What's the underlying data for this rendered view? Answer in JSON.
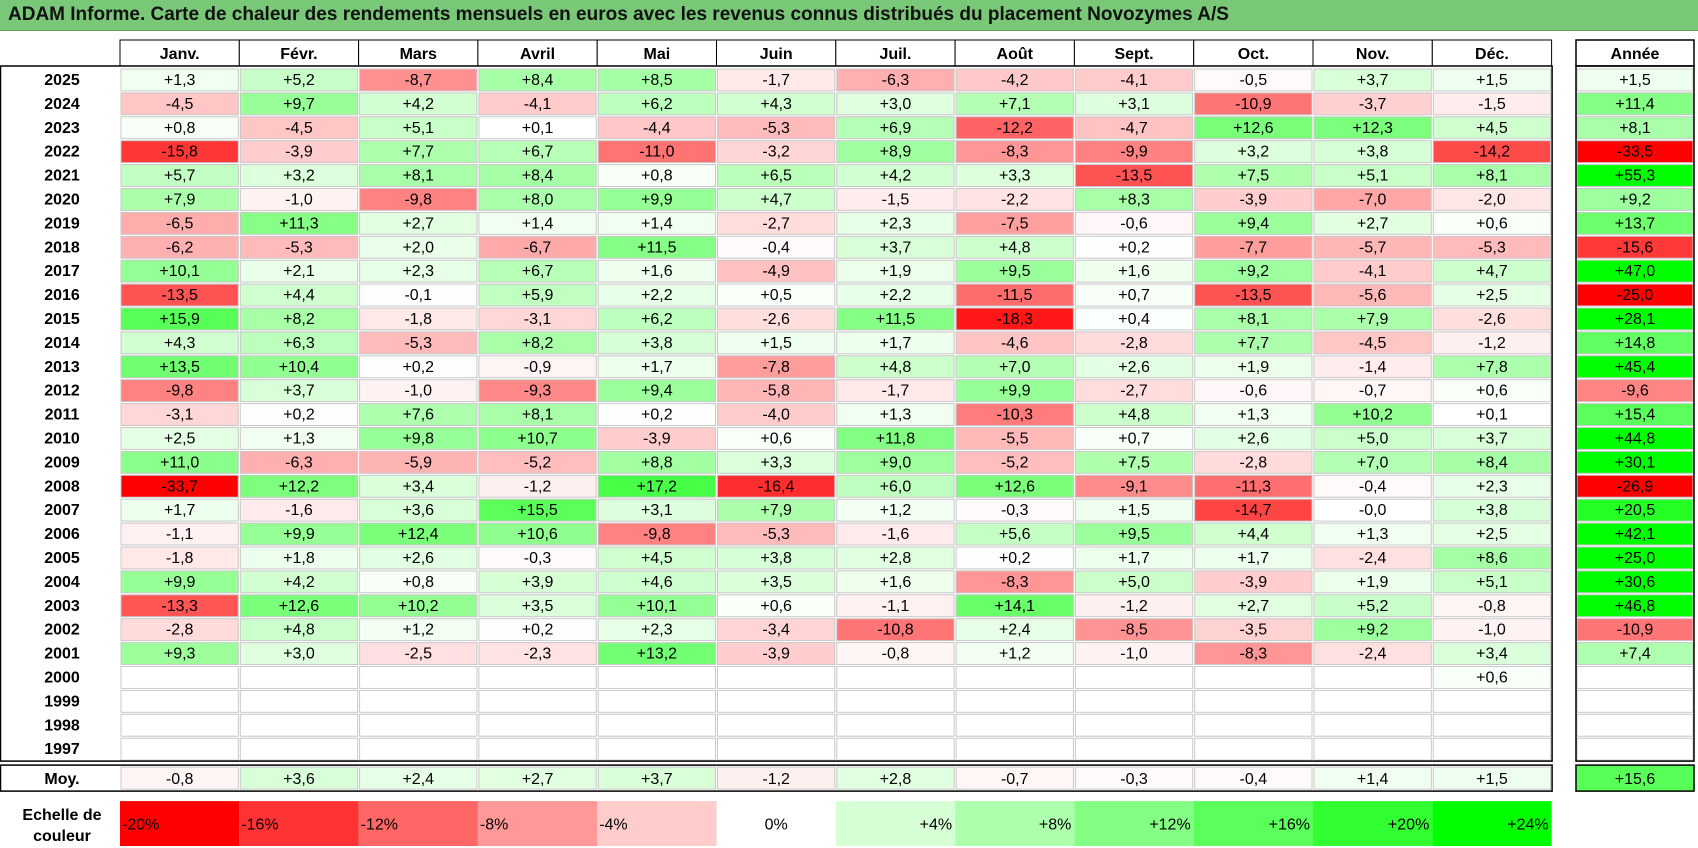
{
  "title": "ADAM Informe. Carte de chaleur des rendements mensuels en euros avec les revenus connus distribués du placement Novozymes A/S",
  "chart_data": {
    "type": "heatmap",
    "columns": [
      "Janv.",
      "Févr.",
      "Mars",
      "Avril",
      "Mai",
      "Juin",
      "Juil.",
      "Août",
      "Sept.",
      "Oct.",
      "Nov.",
      "Déc."
    ],
    "year_header": "Année",
    "rows": [
      {
        "year": "2025",
        "months": [
          "+1,3",
          "+5,2",
          "-8,7",
          "+8,4",
          "+8,5",
          "-1,7",
          "-6,3",
          "-4,2",
          "-4,1",
          "-0,5",
          "+3,7",
          "+1,5"
        ],
        "annual": "+1,5"
      },
      {
        "year": "2024",
        "months": [
          "-4,5",
          "+9,7",
          "+4,2",
          "-4,1",
          "+6,2",
          "+4,3",
          "+3,0",
          "+7,1",
          "+3,1",
          "-10,9",
          "-3,7",
          "-1,5"
        ],
        "annual": "+11,4"
      },
      {
        "year": "2023",
        "months": [
          "+0,8",
          "-4,5",
          "+5,1",
          "+0,1",
          "-4,4",
          "-5,3",
          "+6,9",
          "-12,2",
          "-4,7",
          "+12,6",
          "+12,3",
          "+4,5"
        ],
        "annual": "+8,1"
      },
      {
        "year": "2022",
        "months": [
          "-15,8",
          "-3,9",
          "+7,7",
          "+6,7",
          "-11,0",
          "-3,2",
          "+8,9",
          "-8,3",
          "-9,9",
          "+3,2",
          "+3,8",
          "-14,2"
        ],
        "annual": "-33,5"
      },
      {
        "year": "2021",
        "months": [
          "+5,7",
          "+3,2",
          "+8,1",
          "+8,4",
          "+0,8",
          "+6,5",
          "+4,2",
          "+3,3",
          "-13,5",
          "+7,5",
          "+5,1",
          "+8,1"
        ],
        "annual": "+55,3"
      },
      {
        "year": "2020",
        "months": [
          "+7,9",
          "-1,0",
          "-9,8",
          "+8,0",
          "+9,9",
          "+4,7",
          "-1,5",
          "-2,2",
          "+8,3",
          "-3,9",
          "-7,0",
          "-2,0"
        ],
        "annual": "+9,2"
      },
      {
        "year": "2019",
        "months": [
          "-6,5",
          "+11,3",
          "+2,7",
          "+1,4",
          "+1,4",
          "-2,7",
          "+2,3",
          "-7,5",
          "-0,6",
          "+9,4",
          "+2,7",
          "+0,6"
        ],
        "annual": "+13,7"
      },
      {
        "year": "2018",
        "months": [
          "-6,2",
          "-5,3",
          "+2,0",
          "-6,7",
          "+11,5",
          "-0,4",
          "+3,7",
          "+4,8",
          "+0,2",
          "-7,7",
          "-5,7",
          "-5,3"
        ],
        "annual": "-15,6"
      },
      {
        "year": "2017",
        "months": [
          "+10,1",
          "+2,1",
          "+2,3",
          "+6,7",
          "+1,6",
          "-4,9",
          "+1,9",
          "+9,5",
          "+1,6",
          "+9,2",
          "-4,1",
          "+4,7"
        ],
        "annual": "+47,0"
      },
      {
        "year": "2016",
        "months": [
          "-13,5",
          "+4,4",
          "-0,1",
          "+5,9",
          "+2,2",
          "+0,5",
          "+2,2",
          "-11,5",
          "+0,7",
          "-13,5",
          "-5,6",
          "+2,5"
        ],
        "annual": "-25,0"
      },
      {
        "year": "2015",
        "months": [
          "+15,9",
          "+8,2",
          "-1,8",
          "-3,1",
          "+6,2",
          "-2,6",
          "+11,5",
          "-18,3",
          "+0,4",
          "+8,1",
          "+7,9",
          "-2,6"
        ],
        "annual": "+28,1"
      },
      {
        "year": "2014",
        "months": [
          "+4,3",
          "+6,3",
          "-5,3",
          "+8,2",
          "+3,8",
          "+1,5",
          "+1,7",
          "-4,6",
          "-2,8",
          "+7,7",
          "-4,5",
          "-1,2"
        ],
        "annual": "+14,8"
      },
      {
        "year": "2013",
        "months": [
          "+13,5",
          "+10,4",
          "+0,2",
          "-0,9",
          "+1,7",
          "-7,8",
          "+4,8",
          "+7,0",
          "+2,6",
          "+1,9",
          "-1,4",
          "+7,8"
        ],
        "annual": "+45,4"
      },
      {
        "year": "2012",
        "months": [
          "-9,8",
          "+3,7",
          "-1,0",
          "-9,3",
          "+9,4",
          "-5,8",
          "-1,7",
          "+9,9",
          "-2,7",
          "-0,6",
          "-0,7",
          "+0,6"
        ],
        "annual": "-9,6"
      },
      {
        "year": "2011",
        "months": [
          "-3,1",
          "+0,2",
          "+7,6",
          "+8,1",
          "+0,2",
          "-4,0",
          "+1,3",
          "-10,3",
          "+4,8",
          "+1,3",
          "+10,2",
          "+0,1"
        ],
        "annual": "+15,4"
      },
      {
        "year": "2010",
        "months": [
          "+2,5",
          "+1,3",
          "+9,8",
          "+10,7",
          "-3,9",
          "+0,6",
          "+11,8",
          "-5,5",
          "+0,7",
          "+2,6",
          "+5,0",
          "+3,7"
        ],
        "annual": "+44,8"
      },
      {
        "year": "2009",
        "months": [
          "+11,0",
          "-6,3",
          "-5,9",
          "-5,2",
          "+8,8",
          "+3,3",
          "+9,0",
          "-5,2",
          "+7,5",
          "-2,8",
          "+7,0",
          "+8,4"
        ],
        "annual": "+30,1"
      },
      {
        "year": "2008",
        "months": [
          "-33,7",
          "+12,2",
          "+3,4",
          "-1,2",
          "+17,2",
          "-16,4",
          "+6,0",
          "+12,6",
          "-9,1",
          "-11,3",
          "-0,4",
          "+2,3"
        ],
        "annual": "-26,9"
      },
      {
        "year": "2007",
        "months": [
          "+1,7",
          "-1,6",
          "+3,6",
          "+15,5",
          "+3,1",
          "+7,9",
          "+1,2",
          "-0,3",
          "+1,5",
          "-14,7",
          "-0,0",
          "+3,8"
        ],
        "annual": "+20,5"
      },
      {
        "year": "2006",
        "months": [
          "-1,1",
          "+9,9",
          "+12,4",
          "+10,6",
          "-9,8",
          "-5,3",
          "-1,6",
          "+5,6",
          "+9,5",
          "+4,4",
          "+1,3",
          "+2,5"
        ],
        "annual": "+42,1"
      },
      {
        "year": "2005",
        "months": [
          "-1,8",
          "+1,8",
          "+2,6",
          "-0,3",
          "+4,5",
          "+3,8",
          "+2,8",
          "+0,2",
          "+1,7",
          "+1,7",
          "-2,4",
          "+8,6"
        ],
        "annual": "+25,0"
      },
      {
        "year": "2004",
        "months": [
          "+9,9",
          "+4,2",
          "+0,8",
          "+3,9",
          "+4,6",
          "+3,5",
          "+1,6",
          "-8,3",
          "+5,0",
          "-3,9",
          "+1,9",
          "+5,1"
        ],
        "annual": "+30,6"
      },
      {
        "year": "2003",
        "months": [
          "-13,3",
          "+12,6",
          "+10,2",
          "+3,5",
          "+10,1",
          "+0,6",
          "-1,1",
          "+14,1",
          "-1,2",
          "+2,7",
          "+5,2",
          "-0,8"
        ],
        "annual": "+46,8"
      },
      {
        "year": "2002",
        "months": [
          "-2,8",
          "+4,8",
          "+1,2",
          "+0,2",
          "+2,3",
          "-3,4",
          "-10,8",
          "+2,4",
          "-8,5",
          "-3,5",
          "+9,2",
          "-1,0"
        ],
        "annual": "-10,9"
      },
      {
        "year": "2001",
        "months": [
          "+9,3",
          "+3,0",
          "-2,5",
          "-2,3",
          "+13,2",
          "-3,9",
          "-0,8",
          "+1,2",
          "-1,0",
          "-8,3",
          "-2,4",
          "+3,4"
        ],
        "annual": "+7,4"
      },
      {
        "year": "2000",
        "months": [
          "",
          "",
          "",
          "",
          "",
          "",
          "",
          "",
          "",
          "",
          "",
          "+0,6"
        ],
        "annual": ""
      },
      {
        "year": "1999",
        "months": [
          "",
          "",
          "",
          "",
          "",
          "",
          "",
          "",
          "",
          "",
          "",
          ""
        ],
        "annual": ""
      },
      {
        "year": "1998",
        "months": [
          "",
          "",
          "",
          "",
          "",
          "",
          "",
          "",
          "",
          "",
          "",
          ""
        ],
        "annual": ""
      },
      {
        "year": "1997",
        "months": [
          "",
          "",
          "",
          "",
          "",
          "",
          "",
          "",
          "",
          "",
          "",
          ""
        ],
        "annual": ""
      }
    ],
    "average": {
      "label": "Moy.",
      "months": [
        "-0,8",
        "+3,6",
        "+2,4",
        "+2,7",
        "+3,7",
        "-1,2",
        "+2,8",
        "-0,7",
        "-0,3",
        "-0,4",
        "+1,4",
        "+1,5"
      ],
      "annual": "+15,6"
    },
    "scale": {
      "label_line1": "Echelle de",
      "label_line2": "couleur",
      "items": [
        {
          "label": "-20%",
          "value": -20,
          "color": "#ff0000"
        },
        {
          "label": "-16%",
          "value": -16,
          "color": "#ff3333"
        },
        {
          "label": "-12%",
          "value": -12,
          "color": "#ff6666"
        },
        {
          "label": "-8%",
          "value": -8,
          "color": "#ff9999"
        },
        {
          "label": "-4%",
          "value": -4,
          "color": "#ffcccc"
        },
        {
          "label": "0%",
          "value": 0,
          "color": "#ffffff"
        },
        {
          "label": "+4%",
          "value": 4,
          "color": "#d6ffd6"
        },
        {
          "label": "+8%",
          "value": 8,
          "color": "#adffad"
        },
        {
          "label": "+12%",
          "value": 12,
          "color": "#84ff84"
        },
        {
          "label": "+16%",
          "value": 16,
          "color": "#5bff5b"
        },
        {
          "label": "+20%",
          "value": 20,
          "color": "#32ff32"
        },
        {
          "label": "+24%",
          "value": 24,
          "color": "#00ff00"
        }
      ]
    }
  }
}
